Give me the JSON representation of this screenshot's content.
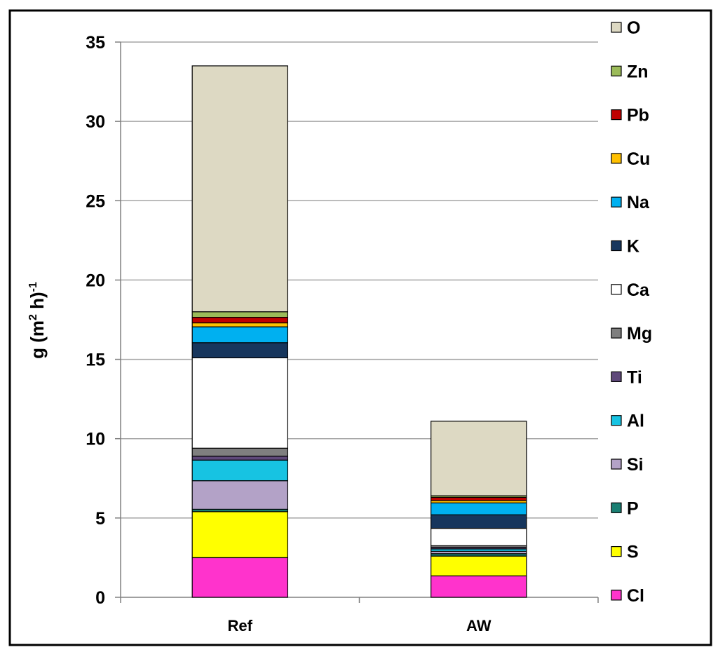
{
  "chart_data": {
    "type": "bar",
    "stacked": true,
    "title": "",
    "xlabel": "",
    "ylabel": {
      "main": "g (m",
      "sup1": "2",
      "mid": " h)",
      "sup2": "-1"
    },
    "ylim": [
      0,
      35
    ],
    "yticks": [
      0,
      5,
      10,
      15,
      20,
      25,
      30,
      35
    ],
    "grid": true,
    "legend_position": "right",
    "categories": [
      "Ref",
      "AW"
    ],
    "series": [
      {
        "name": "Cl",
        "color": "#FF33CC",
        "values": [
          2.5,
          1.35
        ]
      },
      {
        "name": "S",
        "color": "#FFFF00",
        "values": [
          2.9,
          1.25
        ]
      },
      {
        "name": "P",
        "color": "#1A7F73",
        "values": [
          0.15,
          0.15
        ]
      },
      {
        "name": "Si",
        "color": "#B3A2C7",
        "values": [
          1.8,
          0.15
        ]
      },
      {
        "name": "Al",
        "color": "#17C3E2",
        "values": [
          1.3,
          0.15
        ]
      },
      {
        "name": "Ti",
        "color": "#5F497A",
        "values": [
          0.25,
          0.1
        ]
      },
      {
        "name": "Mg",
        "color": "#7F7F7F",
        "values": [
          0.5,
          0.1
        ]
      },
      {
        "name": "Ca",
        "color": "#FFFFFF",
        "values": [
          5.7,
          1.1
        ]
      },
      {
        "name": "K",
        "color": "#17365D",
        "values": [
          0.95,
          0.85
        ]
      },
      {
        "name": "Na",
        "color": "#00B0F0",
        "values": [
          1.0,
          0.75
        ]
      },
      {
        "name": "Cu",
        "color": "#FFC000",
        "values": [
          0.25,
          0.15
        ]
      },
      {
        "name": "Pb",
        "color": "#C00000",
        "values": [
          0.35,
          0.2
        ]
      },
      {
        "name": "Zn",
        "color": "#9BBB59",
        "values": [
          0.35,
          0.1
        ]
      },
      {
        "name": "O",
        "color": "#DDD9C3",
        "values": [
          15.5,
          4.7
        ]
      }
    ]
  }
}
